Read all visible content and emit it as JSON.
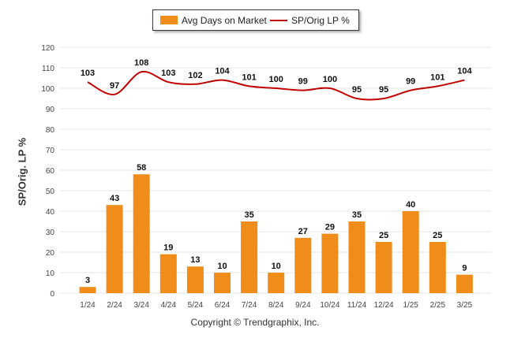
{
  "legend": {
    "bar_label": "Avg Days on Market",
    "line_label": "SP/Orig LP %"
  },
  "ylabel": "SP/Orig. LP %",
  "footer": "Copyright © Trendgraphix, Inc.",
  "colors": {
    "bar": "#ef8c1a",
    "line": "#c00000",
    "grid": "#e6e6e6"
  },
  "chart_data": {
    "type": "bar",
    "categories": [
      "1/24",
      "2/24",
      "3/24",
      "4/24",
      "5/24",
      "6/24",
      "7/24",
      "8/24",
      "9/24",
      "10/24",
      "11/24",
      "12/24",
      "1/25",
      "2/25",
      "3/25"
    ],
    "series": [
      {
        "name": "Avg Days on Market",
        "type": "bar",
        "values": [
          3,
          43,
          58,
          19,
          13,
          10,
          35,
          10,
          27,
          29,
          35,
          25,
          40,
          25,
          9
        ]
      },
      {
        "name": "SP/Orig LP %",
        "type": "line",
        "values": [
          103,
          97,
          108,
          103,
          102,
          104,
          101,
          100,
          99,
          100,
          95,
          95,
          99,
          101,
          104
        ]
      }
    ],
    "xlabel": "",
    "ylabel": "SP/Orig. LP %",
    "ylim": [
      0,
      120
    ],
    "yticks": [
      0,
      10,
      20,
      30,
      40,
      50,
      60,
      70,
      80,
      90,
      100,
      110,
      120
    ],
    "grid": true,
    "legend_position": "top-center"
  }
}
